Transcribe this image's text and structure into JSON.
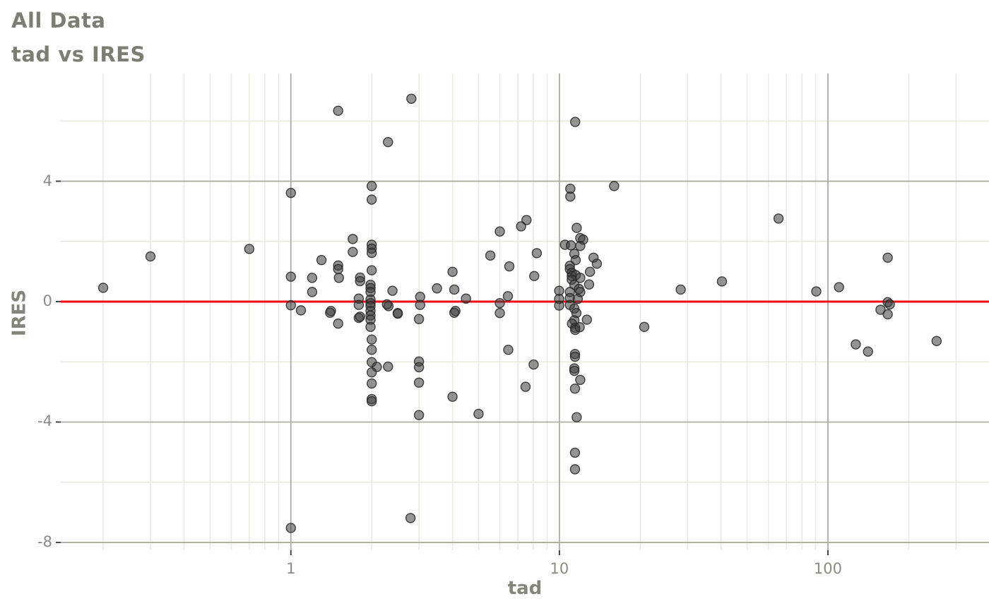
{
  "header": {
    "title": "All Data",
    "subtitle": "tad vs IRES"
  },
  "chart_data": {
    "type": "scatter",
    "title": "All Data",
    "subtitle": "tad vs IRES",
    "xlabel": "tad",
    "ylabel": "IRES",
    "x_scale": "log10",
    "xlim": [
      0.139,
      398
    ],
    "ylim": [
      -8.26,
      7.58
    ],
    "x_ticks": [
      1,
      10,
      100
    ],
    "x_tick_labels": [
      "1",
      "10",
      "100"
    ],
    "x_minor_breaks": [
      0.2,
      0.3,
      0.4,
      0.5,
      0.6,
      0.7,
      0.8,
      0.9,
      2,
      3,
      4,
      5,
      6,
      7,
      8,
      9,
      20,
      30,
      40,
      50,
      60,
      70,
      80,
      90,
      200,
      300
    ],
    "y_ticks": [
      4,
      0,
      -4,
      -8
    ],
    "y_tick_labels": [
      "4",
      "0",
      "-4",
      "-8"
    ],
    "y_minor_breaks": [
      6,
      2,
      -2,
      -6
    ],
    "grid": true,
    "legend": "none",
    "hline": {
      "y": 0,
      "color": "#FB0A14",
      "width": 3
    },
    "style": {
      "point_fill": "#3d3d3d",
      "point_stroke": "#262626",
      "point_opacity": 0.55,
      "point_radius": 6.5,
      "grid_major_color": "#ACACA0",
      "grid_minor_color": "#EAEAE0",
      "tick_mark_color": "#454545",
      "background": "#ffffff"
    },
    "points": [
      [
        0.2,
        0.46
      ],
      [
        0.3,
        1.5
      ],
      [
        0.7,
        1.75
      ],
      [
        1,
        3.61
      ],
      [
        1,
        0.83
      ],
      [
        1.2,
        0.79
      ],
      [
        1.3,
        1.38
      ],
      [
        1.2,
        0.32
      ],
      [
        1,
        -0.12
      ],
      [
        1.09,
        -0.29
      ],
      [
        2.81,
        6.74
      ],
      [
        1.5,
        6.34
      ],
      [
        2.3,
        5.3
      ],
      [
        2,
        3.84
      ],
      [
        2,
        3.39
      ],
      [
        7.54,
        2.71
      ],
      [
        7.2,
        2.5
      ],
      [
        6,
        2.33
      ],
      [
        1.7,
        2.08
      ],
      [
        2,
        1.89
      ],
      [
        2,
        1.76
      ],
      [
        2,
        1.62
      ],
      [
        1.7,
        1.65
      ],
      [
        5.53,
        1.53
      ],
      [
        1.5,
        1.2
      ],
      [
        1.5,
        1.08
      ],
      [
        6.51,
        1.17
      ],
      [
        2,
        1.04
      ],
      [
        8.06,
        0.85
      ],
      [
        1.51,
        0.79
      ],
      [
        4,
        0.99
      ],
      [
        1.81,
        0.8
      ],
      [
        1.81,
        0.68
      ],
      [
        3.5,
        0.44
      ],
      [
        4.06,
        0.4
      ],
      [
        2.39,
        0.36
      ],
      [
        4.49,
        0.1
      ],
      [
        3.03,
        0.16
      ],
      [
        6.43,
        0.18
      ],
      [
        1.79,
        0.1
      ],
      [
        1.41,
        -0.31
      ],
      [
        2.31,
        -0.15
      ],
      [
        2.5,
        -0.38
      ],
      [
        3.03,
        -0.11
      ],
      [
        4.1,
        -0.31
      ],
      [
        6,
        -0.05
      ],
      [
        6,
        -0.38
      ],
      [
        1.98,
        0.56
      ],
      [
        1.98,
        0.45
      ],
      [
        1.98,
        0.32
      ],
      [
        1.98,
        0.07
      ],
      [
        1.98,
        -0.05
      ],
      [
        1.98,
        -0.15
      ],
      [
        1.98,
        -0.31
      ],
      [
        1.98,
        -0.46
      ],
      [
        2.28,
        -0.09
      ],
      [
        1.79,
        -0.11
      ],
      [
        1.79,
        -0.54
      ],
      [
        1.98,
        -0.6
      ],
      [
        1.98,
        -0.84
      ],
      [
        11.45,
        5.97
      ],
      [
        15.99,
        3.84
      ],
      [
        10.98,
        3.75
      ],
      [
        10.98,
        3.49
      ],
      [
        11.6,
        2.45
      ],
      [
        11.96,
        2.11
      ],
      [
        12.26,
        2.06
      ],
      [
        10.49,
        1.89
      ],
      [
        11.04,
        1.87
      ],
      [
        11.96,
        1.85
      ],
      [
        8.24,
        1.61
      ],
      [
        11.37,
        1.59
      ],
      [
        13.4,
        1.46
      ],
      [
        11.5,
        1.38
      ],
      [
        13.79,
        1.26
      ],
      [
        10.94,
        1.19
      ],
      [
        10.94,
        1.08
      ],
      [
        11.12,
        0.96
      ],
      [
        11.12,
        0.85
      ],
      [
        11.5,
        0.88
      ],
      [
        13,
        0.99
      ],
      [
        11.96,
        0.79
      ],
      [
        11.12,
        0.73
      ],
      [
        11.37,
        0.56
      ],
      [
        12.9,
        0.57
      ],
      [
        11.83,
        0.42
      ],
      [
        9.98,
        0.36
      ],
      [
        10.94,
        0.32
      ],
      [
        11.96,
        0.32
      ],
      [
        9.98,
        0.09
      ],
      [
        10.94,
        0.12
      ],
      [
        11.7,
        0.09
      ],
      [
        9.98,
        -0.13
      ],
      [
        10.94,
        -0.11
      ],
      [
        11.37,
        -0.23
      ],
      [
        28.3,
        0.4
      ],
      [
        40.3,
        0.67
      ],
      [
        11.57,
        -0.38
      ],
      [
        12.66,
        -0.6
      ],
      [
        11.37,
        -0.62
      ],
      [
        11.14,
        -0.73
      ],
      [
        11.45,
        -0.87
      ],
      [
        11.45,
        -0.94
      ],
      [
        11.9,
        -0.85
      ],
      [
        20.7,
        -0.84
      ],
      [
        11.43,
        -1.74
      ],
      [
        11.43,
        -1.83
      ],
      [
        11.37,
        -2.22
      ],
      [
        11.37,
        -2.3
      ],
      [
        11.96,
        -2.6
      ],
      [
        11.43,
        -2.89
      ],
      [
        11.6,
        -3.84
      ],
      [
        11.43,
        -5.02
      ],
      [
        11.43,
        -5.57
      ],
      [
        65.5,
        2.76
      ],
      [
        167,
        1.46
      ],
      [
        90.5,
        0.34
      ],
      [
        110,
        0.48
      ],
      [
        167,
        -0.02
      ],
      [
        170,
        -0.09
      ],
      [
        157,
        -0.27
      ],
      [
        167,
        -0.42
      ],
      [
        127,
        -1.42
      ],
      [
        141,
        -1.66
      ],
      [
        254,
        -1.31
      ],
      [
        1.4,
        -0.37
      ],
      [
        1.81,
        -0.5
      ],
      [
        1.5,
        -0.73
      ],
      [
        2.5,
        -0.4
      ],
      [
        3,
        -0.58
      ],
      [
        4.06,
        -0.37
      ],
      [
        2,
        -1.26
      ],
      [
        2,
        -1.6
      ],
      [
        6.45,
        -1.6
      ],
      [
        2,
        -2.01
      ],
      [
        2.09,
        -2.17
      ],
      [
        2.3,
        -2.16
      ],
      [
        2,
        -2.35
      ],
      [
        3,
        -1.99
      ],
      [
        3,
        -2.18
      ],
      [
        8.02,
        -2.09
      ],
      [
        2,
        -2.72
      ],
      [
        3,
        -2.69
      ],
      [
        7.48,
        -2.83
      ],
      [
        4,
        -3.16
      ],
      [
        2,
        -3.24
      ],
      [
        2,
        -3.31
      ],
      [
        3,
        -3.77
      ],
      [
        5,
        -3.73
      ],
      [
        2.79,
        -7.19
      ],
      [
        1,
        -7.52
      ]
    ]
  }
}
